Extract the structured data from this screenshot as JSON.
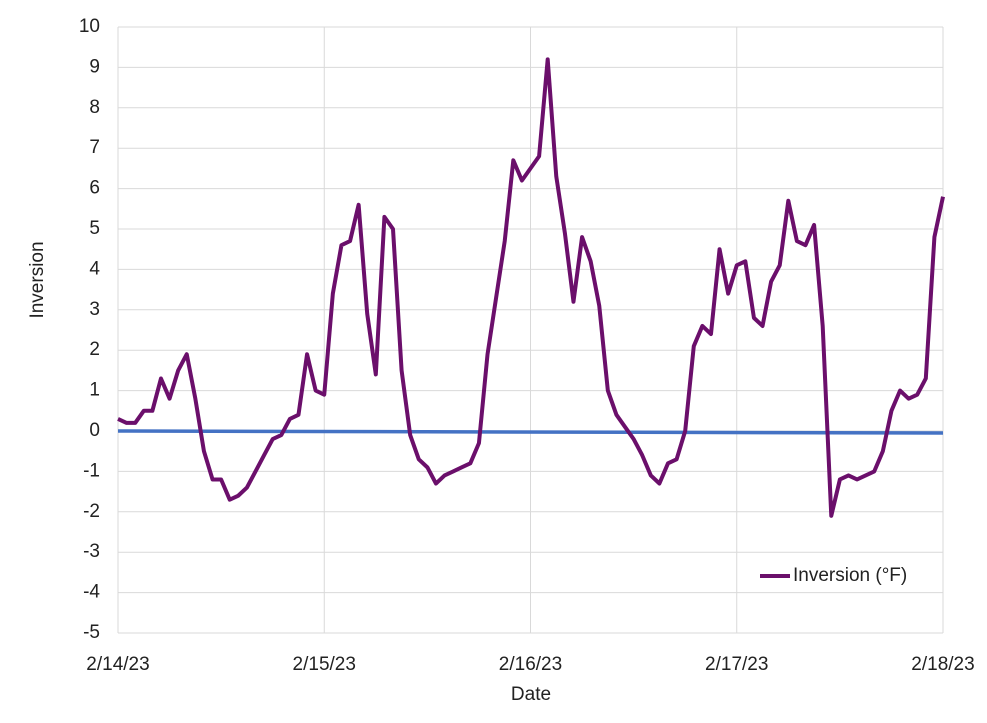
{
  "chart_data": {
    "type": "line",
    "xlabel": "Date",
    "ylabel": "Inversion",
    "x": [
      44971,
      44971.04167,
      44971.08333,
      44971.125,
      44971.16667,
      44971.20833,
      44971.25,
      44971.29167,
      44971.33333,
      44971.375,
      44971.41667,
      44971.45833,
      44971.5,
      44971.54167,
      44971.58333,
      44971.625,
      44971.66667,
      44971.70833,
      44971.75,
      44971.79167,
      44971.83333,
      44971.875,
      44971.91667,
      44971.95833,
      44972,
      44972.04167,
      44972.08333,
      44972.125,
      44972.16667,
      44972.20833,
      44972.25,
      44972.29167,
      44972.33333,
      44972.375,
      44972.41667,
      44972.45833,
      44972.5,
      44972.54167,
      44972.58333,
      44972.625,
      44972.66667,
      44972.70833,
      44972.75,
      44972.79167,
      44972.83333,
      44972.875,
      44972.91667,
      44972.95833,
      44973,
      44973.04167,
      44973.08333,
      44973.125,
      44973.16667,
      44973.20833,
      44973.25,
      44973.29167,
      44973.33333,
      44973.375,
      44973.41667,
      44973.45833,
      44973.5,
      44973.54167,
      44973.58333,
      44973.625,
      44973.66667,
      44973.70833,
      44973.75,
      44973.79167,
      44973.83333,
      44973.875,
      44973.91667,
      44973.95833,
      44974,
      44974.04167,
      44974.08333,
      44974.125,
      44974.16667,
      44974.20833,
      44974.25,
      44974.29167,
      44974.33333,
      44974.375,
      44974.41667,
      44974.45833,
      44974.5,
      44974.54167,
      44974.58333,
      44974.625,
      44974.66667,
      44974.70833,
      44974.75,
      44974.79167,
      44974.83333,
      44974.875,
      44974.91667,
      44974.95833,
      44975
    ],
    "series": [
      {
        "name": "Inversion (°F)",
        "color": "#6b0f6b",
        "values": [
          0.3,
          0.2,
          0.2,
          0.5,
          0.5,
          1.3,
          0.8,
          1.5,
          1.9,
          0.8,
          -0.5,
          -1.2,
          -1.2,
          -1.7,
          -1.6,
          -1.4,
          -1.0,
          -0.6,
          -0.2,
          -0.1,
          0.3,
          0.4,
          1.9,
          1.0,
          0.9,
          3.4,
          4.6,
          4.7,
          5.6,
          2.9,
          1.4,
          5.3,
          5.0,
          1.5,
          -0.1,
          -0.7,
          -0.9,
          -1.3,
          -1.1,
          -1.0,
          -0.9,
          -0.8,
          -0.3,
          1.9,
          3.3,
          4.7,
          6.7,
          6.2,
          6.5,
          6.8,
          9.2,
          6.3,
          4.9,
          3.2,
          4.8,
          4.2,
          3.1,
          1.0,
          0.4,
          0.1,
          -0.2,
          -0.6,
          -1.1,
          -1.3,
          -0.8,
          -0.7,
          0.0,
          2.1,
          2.6,
          2.4,
          4.5,
          3.4,
          4.1,
          4.2,
          2.8,
          2.6,
          3.7,
          4.1,
          5.7,
          4.7,
          4.6,
          5.1,
          2.6,
          -2.1,
          -1.2,
          -1.1,
          -1.2,
          -1.1,
          -1.0,
          -0.5,
          0.5,
          1.0,
          0.8,
          0.9,
          1.3,
          4.8,
          5.8
        ]
      }
    ],
    "trendline": {
      "color": "#4472c4",
      "values": [
        0,
        -0.05
      ]
    },
    "xlim": [
      44971,
      44975
    ],
    "xticks": [
      {
        "value": 44971,
        "label": "2/14/23"
      },
      {
        "value": 44972,
        "label": "2/15/23"
      },
      {
        "value": 44973,
        "label": "2/16/23"
      },
      {
        "value": 44974,
        "label": "2/17/23"
      },
      {
        "value": 44975,
        "label": "2/18/23"
      }
    ],
    "ylim": [
      -5,
      10
    ],
    "yticks": [
      -5,
      -4,
      -3,
      -2,
      -1,
      0,
      1,
      2,
      3,
      4,
      5,
      6,
      7,
      8,
      9,
      10
    ],
    "grid": true,
    "legend": "lower right"
  }
}
